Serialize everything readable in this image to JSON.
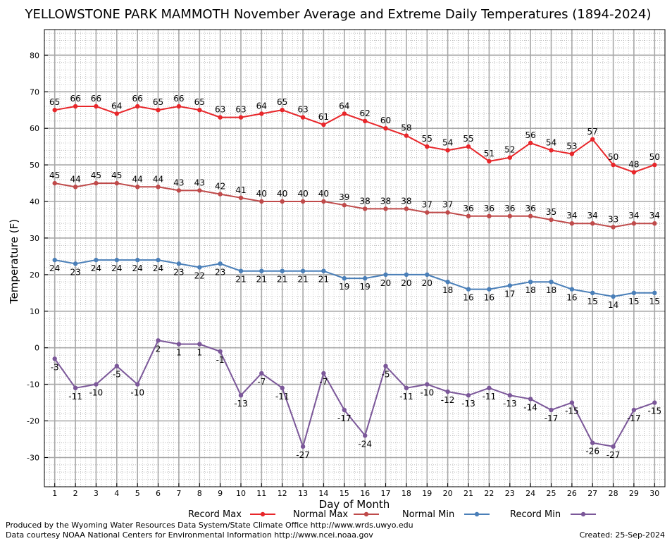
{
  "chart_data": {
    "type": "line",
    "title": "YELLOWSTONE PARK MAMMOTH November Average and Extreme Daily Temperatures (1894-2024)",
    "xlabel": "Day of Month",
    "ylabel": "Temperature (F)",
    "ylim": [
      -38,
      87
    ],
    "yticks": [
      -30,
      -20,
      -10,
      0,
      10,
      20,
      30,
      40,
      50,
      60,
      70,
      80
    ],
    "xlim": [
      0.5,
      30.5
    ],
    "categories": [
      "1",
      "2",
      "3",
      "4",
      "5",
      "6",
      "7",
      "8",
      "9",
      "10",
      "11",
      "12",
      "13",
      "14",
      "15",
      "16",
      "17",
      "18",
      "19",
      "20",
      "21",
      "22",
      "23",
      "24",
      "25",
      "26",
      "27",
      "28",
      "29",
      "30"
    ],
    "grid": true,
    "legend_position": "bottom",
    "series": [
      {
        "name": "Record Max",
        "color": "#e8262a",
        "label_position": "above",
        "values": [
          65,
          66,
          66,
          64,
          66,
          65,
          66,
          65,
          63,
          63,
          64,
          65,
          63,
          61,
          64,
          62,
          60,
          58,
          55,
          54,
          55,
          51,
          52,
          56,
          54,
          53,
          57,
          50,
          48,
          50
        ]
      },
      {
        "name": "Normal Max",
        "color": "#bf4a4a",
        "label_position": "above",
        "values": [
          45,
          44,
          45,
          45,
          44,
          44,
          43,
          43,
          42,
          41,
          40,
          40,
          40,
          40,
          39,
          38,
          38,
          38,
          37,
          37,
          36,
          36,
          36,
          36,
          35,
          34,
          34,
          33,
          34,
          34
        ]
      },
      {
        "name": "Normal Min",
        "color": "#4a7fb8",
        "label_position": "below",
        "values": [
          24,
          23,
          24,
          24,
          24,
          24,
          23,
          22,
          23,
          21,
          21,
          21,
          21,
          21,
          19,
          19,
          20,
          20,
          20,
          18,
          16,
          16,
          17,
          18,
          18,
          16,
          15,
          14,
          15,
          15
        ]
      },
      {
        "name": "Record Min",
        "color": "#7b5799",
        "label_position": "below",
        "values": [
          -3,
          -11,
          -10,
          -5,
          -10,
          2,
          1,
          1,
          -1,
          -13,
          -7,
          -11,
          -27,
          -7,
          -17,
          -24,
          -5,
          -11,
          -10,
          -12,
          -13,
          -11,
          -13,
          -14,
          -17,
          -15,
          -26,
          -27,
          -17,
          -15
        ]
      }
    ]
  },
  "footer": {
    "produced_by": "Produced by the Wyoming Water Resources Data System/State Climate Office http://www.wrds.uwyo.edu",
    "data_courtesy": "Data courtesy NOAA National Centers for Environmental Information http://www.ncei.noaa.gov",
    "created": "Created:  25-Sep-2024"
  }
}
